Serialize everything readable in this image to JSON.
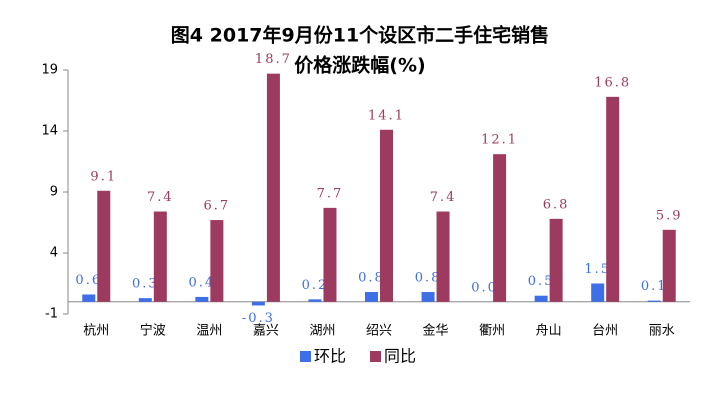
{
  "chart_data": {
    "type": "bar",
    "title": [
      "图4  2017年9月份11个设区市二手住宅销售",
      "价格涨跌幅(%)"
    ],
    "categories": [
      "杭州",
      "宁波",
      "温州",
      "嘉兴",
      "湖州",
      "绍兴",
      "金华",
      "衢州",
      "舟山",
      "台州",
      "丽水"
    ],
    "series": [
      {
        "name": "环比",
        "color": "#3d6fe6",
        "values": [
          0.6,
          0.3,
          0.4,
          -0.3,
          0.2,
          0.8,
          0.8,
          0.0,
          0.5,
          1.5,
          0.1
        ],
        "value_labels": [
          "0.6",
          "0.3",
          "0.4",
          "-0.3",
          "0.2",
          "0.8",
          "0.8",
          "0.0",
          "0.5",
          "1.5",
          "0.1"
        ]
      },
      {
        "name": "同比",
        "color": "#9c3a5f",
        "values": [
          9.1,
          7.4,
          6.7,
          18.7,
          7.7,
          14.1,
          7.4,
          12.1,
          6.8,
          16.8,
          5.9
        ],
        "value_labels": [
          "9.1",
          "7.4",
          "6.7",
          "18.7",
          "7.7",
          "14.1",
          "7.4",
          "12.1",
          "6.8",
          "16.8",
          "5.9"
        ]
      }
    ],
    "ylim": [
      -1,
      19
    ],
    "yticks": [
      -1,
      4,
      9,
      14,
      19
    ],
    "grid": false,
    "legend": "bottom"
  }
}
